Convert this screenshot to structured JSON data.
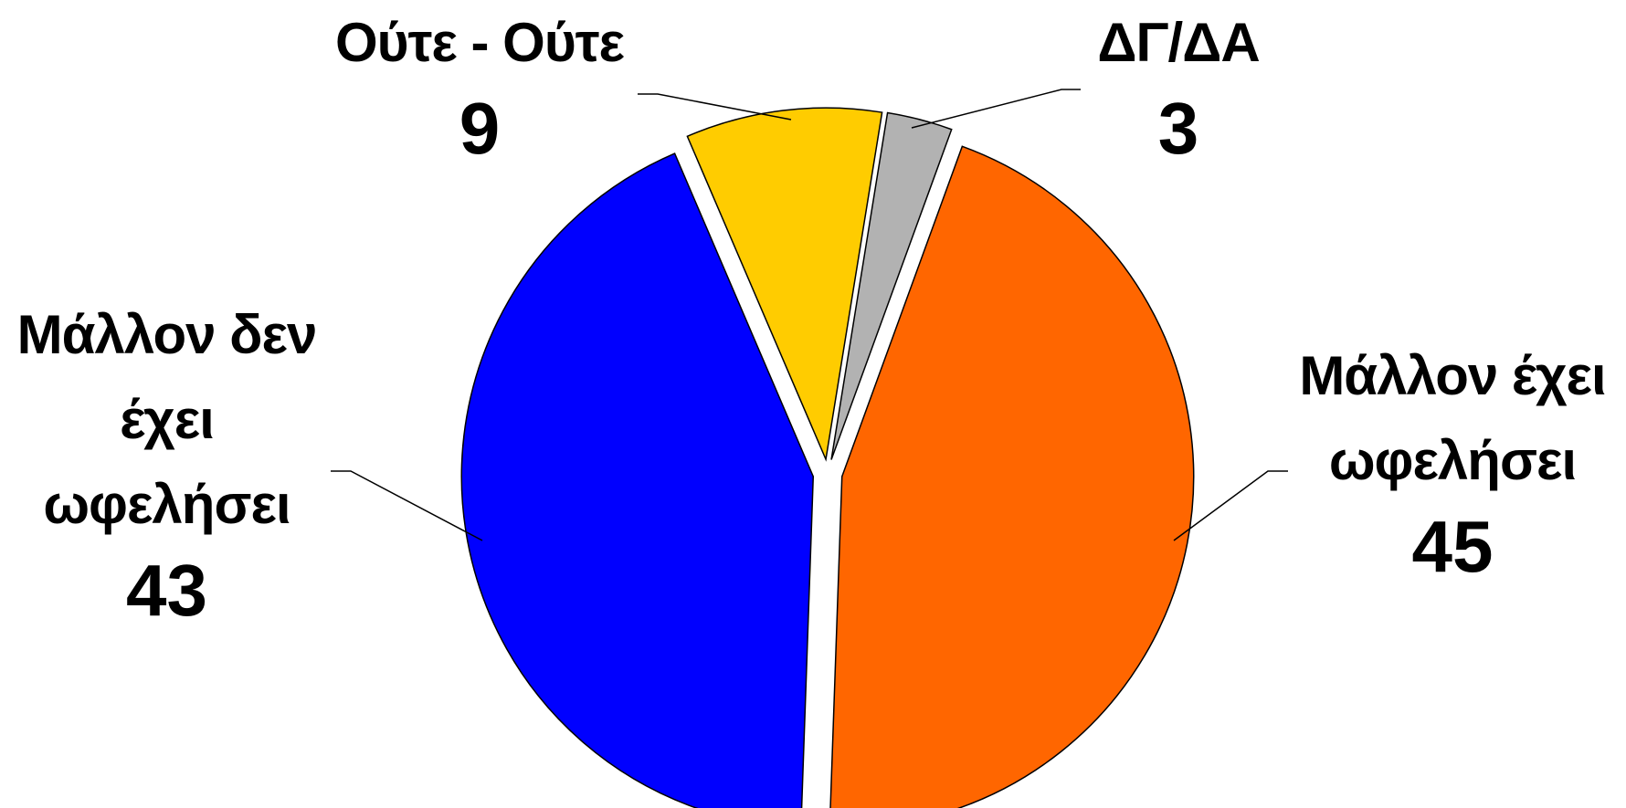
{
  "chart_data": {
    "type": "pie",
    "categories": [
      "Μάλλον έχει ωφελήσει",
      "Μάλλον δεν έχει ωφελήσει",
      "Ούτε - Ούτε",
      "ΔΓ/ΔΑ"
    ],
    "values": [
      45,
      43,
      9,
      3
    ],
    "colors": [
      "#ff6600",
      "#0000ff",
      "#ffcc00",
      "#b2b2b2"
    ]
  }
}
